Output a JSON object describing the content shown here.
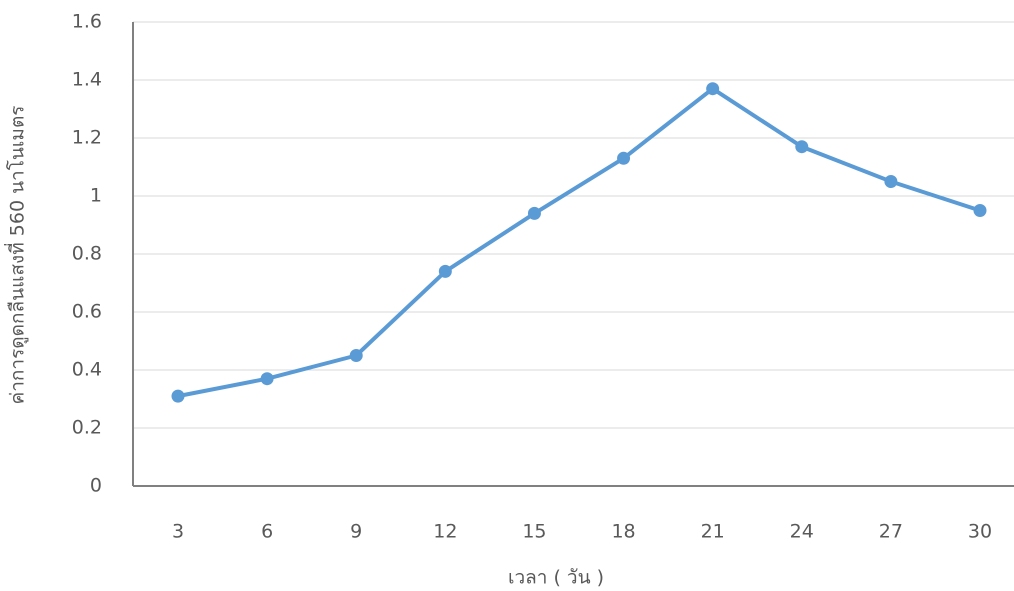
{
  "chart_data": {
    "type": "line",
    "x_label": "เวลา ( วัน )",
    "y_label": "ค่าการดูดกลืนแสงที่ 560 นาโนเมตร",
    "categories": [
      "3",
      "6",
      "9",
      "12",
      "15",
      "18",
      "21",
      "24",
      "27",
      "30"
    ],
    "series": [
      {
        "color": "#5b9bd5",
        "values": [
          0.31,
          0.37,
          0.45,
          0.74,
          0.94,
          1.13,
          1.37,
          1.17,
          1.05,
          0.95
        ]
      }
    ],
    "ylim": [
      0,
      1.6
    ],
    "yticks": [
      0,
      0.2,
      0.4,
      0.6,
      0.8,
      1,
      1.2,
      1.4,
      1.6
    ],
    "grid": true
  }
}
